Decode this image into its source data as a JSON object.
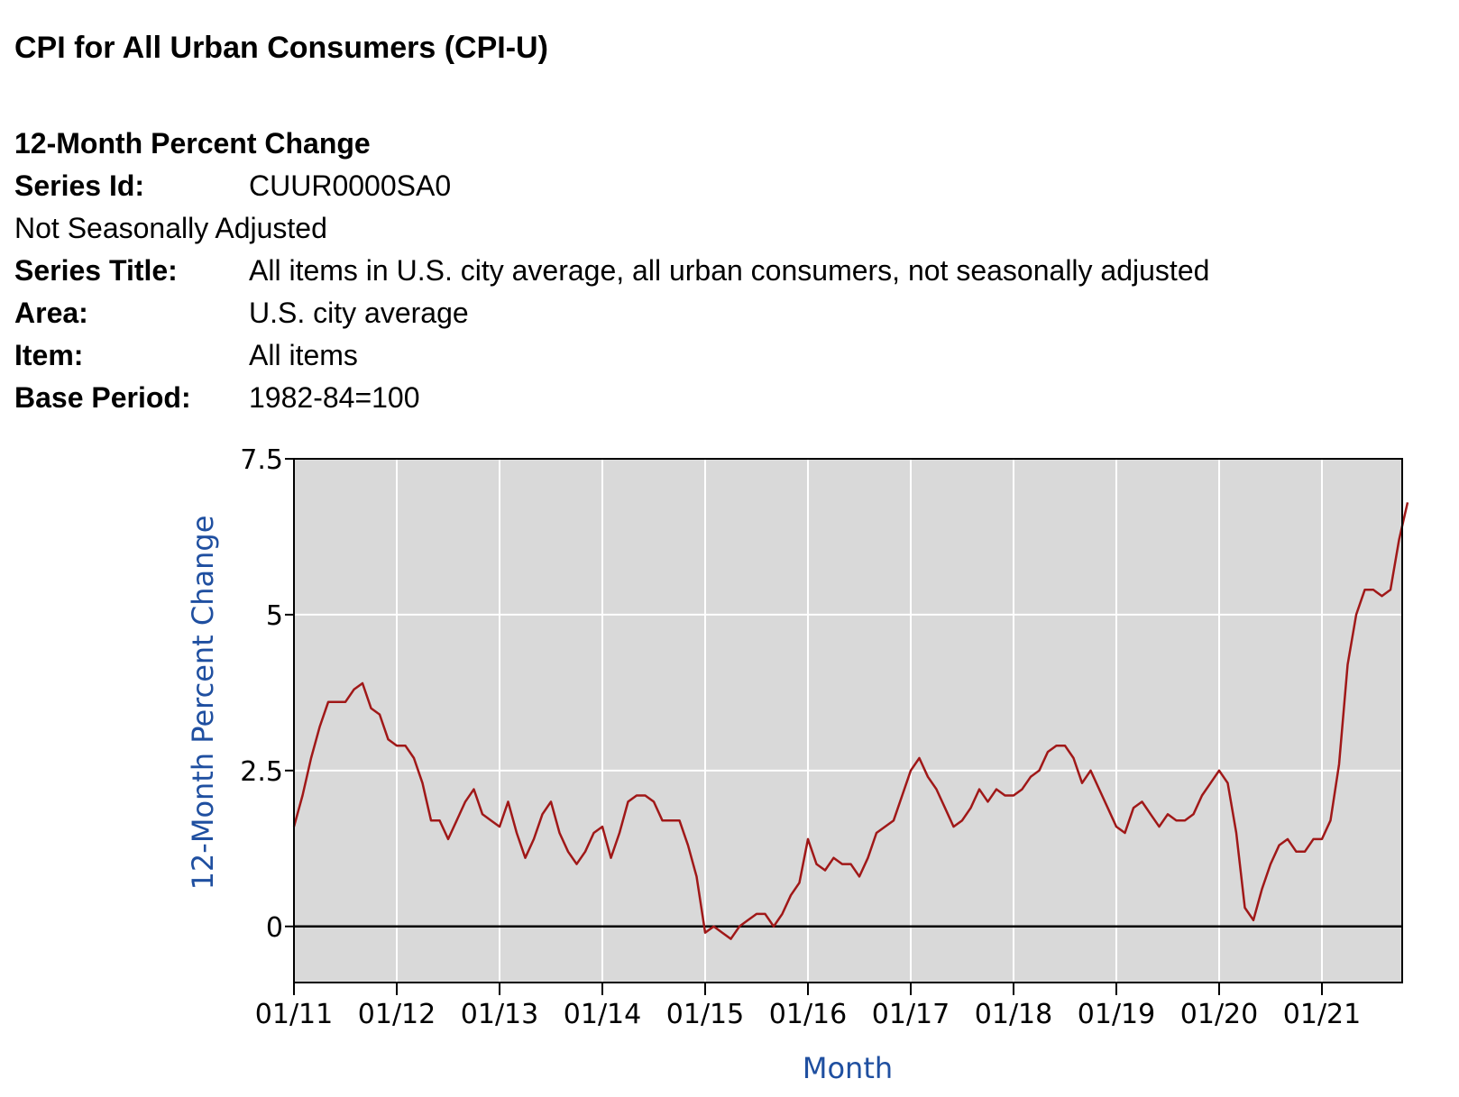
{
  "page": {
    "title": "CPI for All Urban Consumers (CPI-U)",
    "heading": "12-Month Percent Change",
    "series_id_label": "Series Id:",
    "series_id": "CUUR0000SA0",
    "adjustment": "Not Seasonally Adjusted",
    "series_title_label": "Series Title:",
    "series_title": "All items in U.S. city average, all urban consumers, not seasonally adjusted",
    "area_label": "Area:",
    "area": "U.S. city average",
    "item_label": "Item:",
    "item": "All items",
    "base_period_label": "Base Period:",
    "base_period": "1982-84=100"
  },
  "chart_data": {
    "type": "line",
    "title": "",
    "xlabel": "Month",
    "ylabel": "12-Month Percent Change",
    "x_start": "2011-01",
    "x_end": "2021-11",
    "xlim": [
      "2011-01",
      "2021-11"
    ],
    "ylim": [
      -0.9,
      7.5
    ],
    "grid": true,
    "x_tick_labels": [
      "01/11",
      "01/12",
      "01/13",
      "01/14",
      "01/15",
      "01/16",
      "01/17",
      "01/18",
      "01/19",
      "01/20",
      "01/21"
    ],
    "y_tick_labels": [
      "0",
      "2.5",
      "5",
      "7.5"
    ],
    "y_ticks": [
      0,
      2.5,
      5,
      7.5
    ],
    "colors": {
      "line": "#a01818",
      "plot_background": "#d9d9d9",
      "grid": "#ffffff",
      "axis_title": "#1f4fa0",
      "zero_line": "#000000"
    },
    "series": [
      {
        "values": [
          1.6,
          2.1,
          2.7,
          3.2,
          3.6,
          3.6,
          3.6,
          3.8,
          3.9,
          3.5,
          3.4,
          3.0,
          2.9,
          2.9,
          2.7,
          2.3,
          1.7,
          1.7,
          1.4,
          1.7,
          2.0,
          2.2,
          1.8,
          1.7,
          1.6,
          2.0,
          1.5,
          1.1,
          1.4,
          1.8,
          2.0,
          1.5,
          1.2,
          1.0,
          1.2,
          1.5,
          1.6,
          1.1,
          1.5,
          2.0,
          2.1,
          2.1,
          2.0,
          1.7,
          1.7,
          1.7,
          1.3,
          0.8,
          -0.1,
          0.0,
          -0.1,
          -0.2,
          0.0,
          0.1,
          0.2,
          0.2,
          0.0,
          0.2,
          0.5,
          0.7,
          1.4,
          1.0,
          0.9,
          1.1,
          1.0,
          1.0,
          0.8,
          1.1,
          1.5,
          1.6,
          1.7,
          2.1,
          2.5,
          2.7,
          2.4,
          2.2,
          1.9,
          1.6,
          1.7,
          1.9,
          2.2,
          2.0,
          2.2,
          2.1,
          2.1,
          2.2,
          2.4,
          2.5,
          2.8,
          2.9,
          2.9,
          2.7,
          2.3,
          2.5,
          2.2,
          1.9,
          1.6,
          1.5,
          1.9,
          2.0,
          1.8,
          1.6,
          1.8,
          1.7,
          1.7,
          1.8,
          2.1,
          2.3,
          2.5,
          2.3,
          1.5,
          0.3,
          0.1,
          0.6,
          1.0,
          1.3,
          1.4,
          1.2,
          1.2,
          1.4,
          1.4,
          1.7,
          2.6,
          4.2,
          5.0,
          5.4,
          5.4,
          5.3,
          5.4,
          6.2,
          6.8
        ]
      }
    ]
  }
}
